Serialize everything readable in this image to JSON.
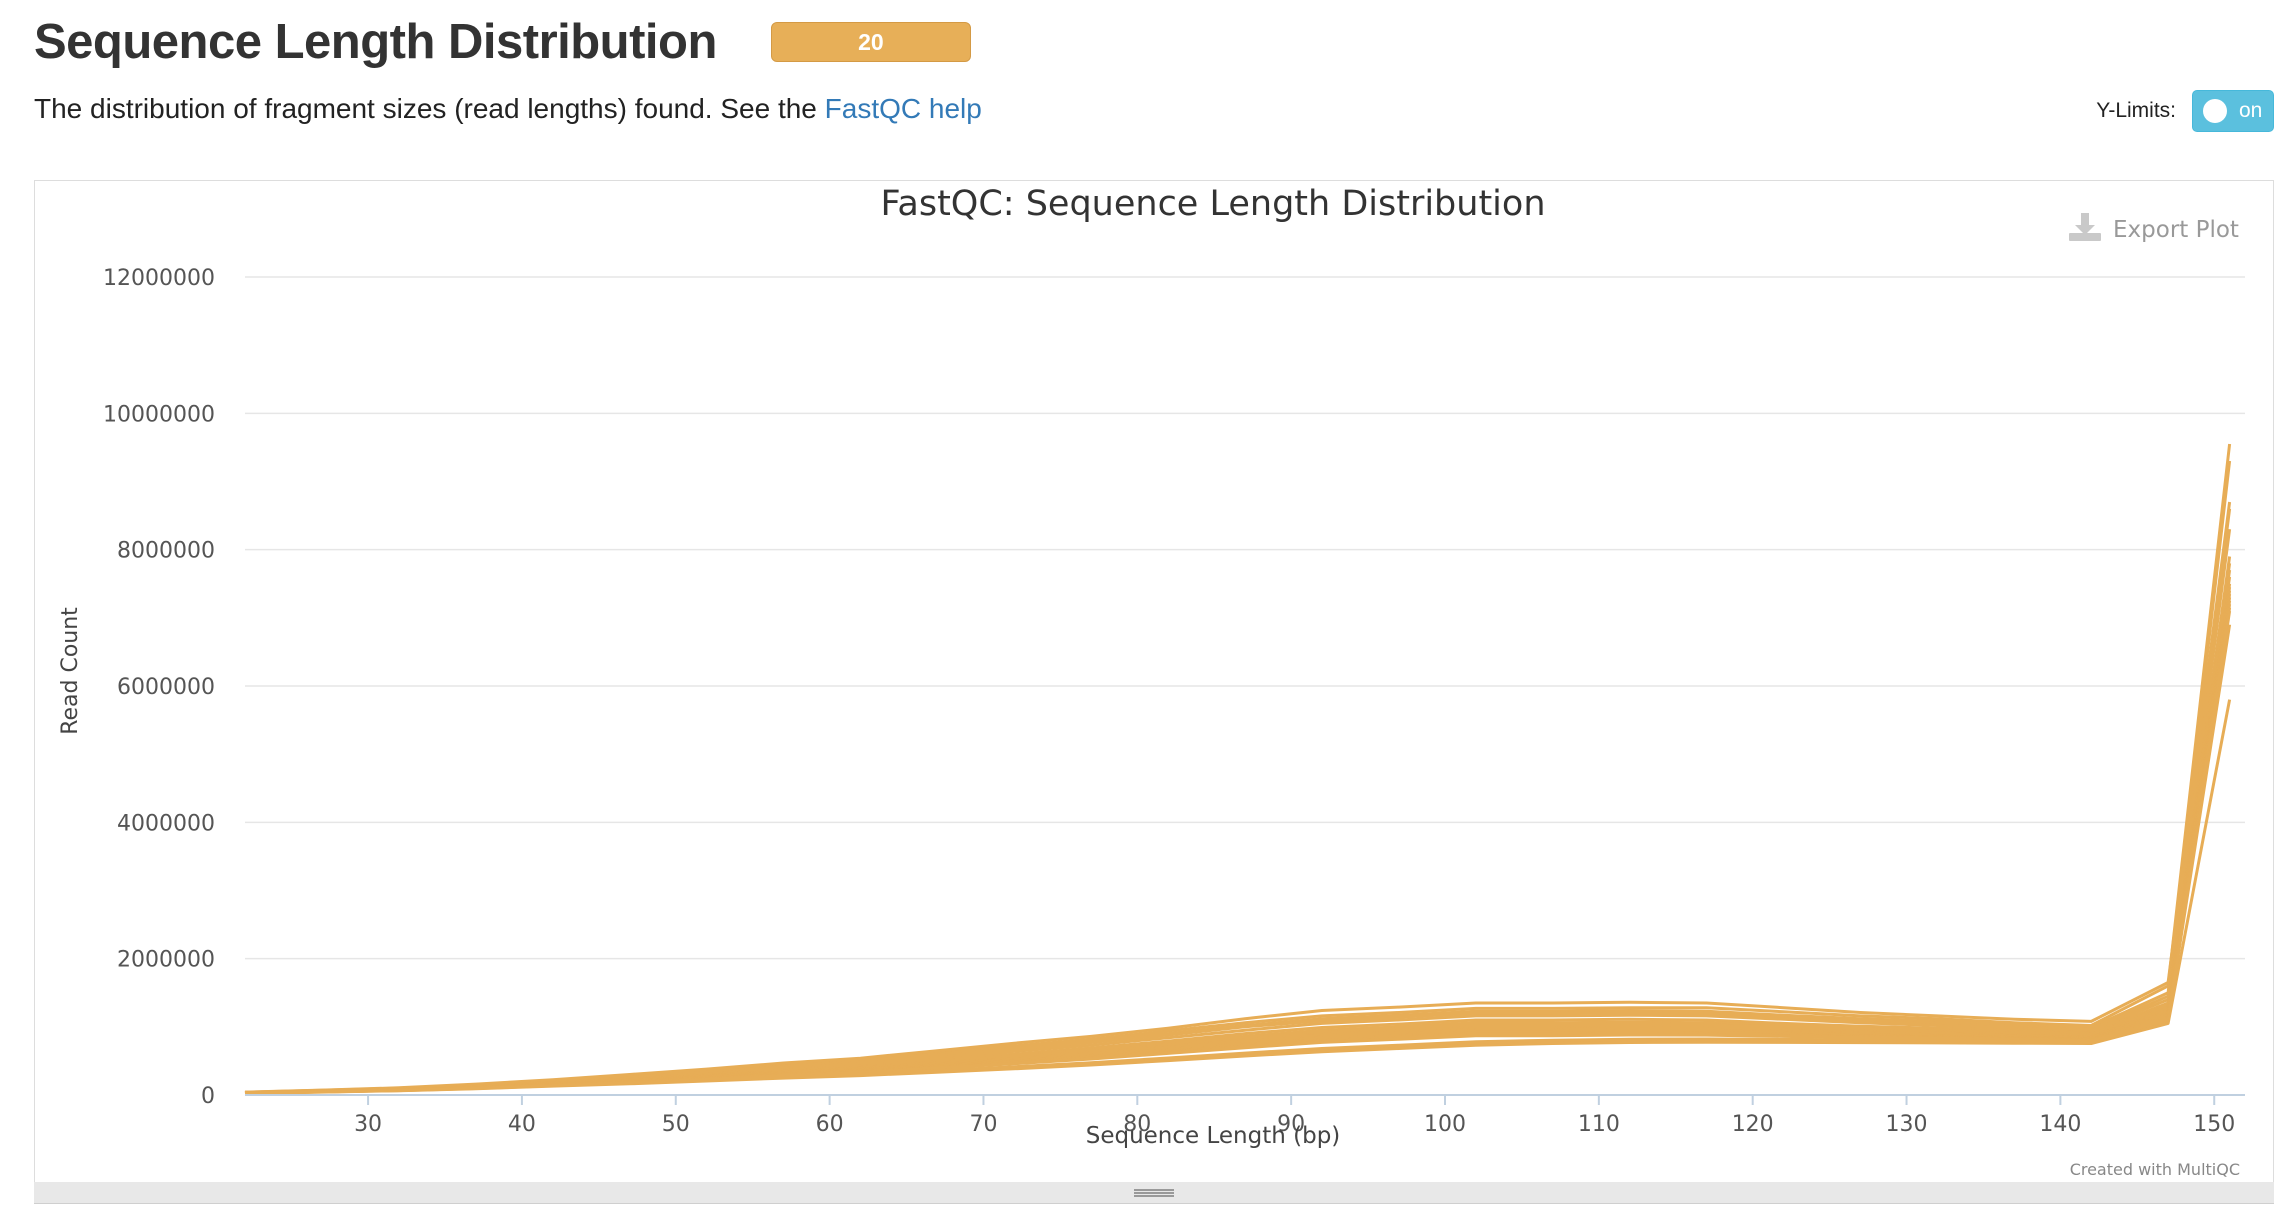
{
  "header": {
    "title": "Sequence Length Distribution",
    "badge_count": "20",
    "description_prefix": "The distribution of fragment sizes (read lengths) found. See the ",
    "help_link": "FastQC help"
  },
  "controls": {
    "ylimits_label": "Y-Limits:",
    "ylimits_toggle": "on",
    "export_label": "Export Plot"
  },
  "credit": "Created with MultiQC",
  "colors": {
    "series": "#e7ad56",
    "badge": "#e7af58",
    "toggle": "#5bc0de",
    "link": "#337ab7"
  },
  "chart_data": {
    "type": "line",
    "title": "FastQC: Sequence Length Distribution",
    "xlabel": "Sequence Length (bp)",
    "ylabel": "Read Count",
    "xlim": [
      22,
      152
    ],
    "ylim": [
      0,
      12000000
    ],
    "x_ticks": [
      30,
      40,
      50,
      60,
      70,
      80,
      90,
      100,
      110,
      120,
      130,
      140,
      150
    ],
    "y_ticks": [
      0,
      2000000,
      4000000,
      6000000,
      8000000,
      10000000,
      12000000
    ],
    "grid": true,
    "x": [
      22,
      27,
      32,
      37,
      42,
      47,
      52,
      57,
      62,
      67,
      72,
      77,
      82,
      87,
      92,
      97,
      102,
      107,
      112,
      117,
      122,
      127,
      132,
      137,
      142,
      147,
      151
    ],
    "series": [
      {
        "values": [
          40000,
          70000,
          100000,
          150000,
          210000,
          280000,
          360000,
          450000,
          520000,
          620000,
          720000,
          820000,
          940000,
          1060000,
          1160000,
          1210000,
          1270000,
          1270000,
          1280000,
          1280000,
          1220000,
          1160000,
          1120000,
          1060000,
          1020000,
          1600000,
          9550000
        ]
      },
      {
        "values": [
          38000,
          66000,
          95000,
          140000,
          200000,
          265000,
          340000,
          420000,
          500000,
          600000,
          690000,
          790000,
          900000,
          1020000,
          1120000,
          1170000,
          1230000,
          1230000,
          1240000,
          1230000,
          1170000,
          1120000,
          1080000,
          1030000,
          990000,
          1500000,
          9300000
        ]
      },
      {
        "values": [
          42000,
          72000,
          105000,
          160000,
          225000,
          300000,
          380000,
          470000,
          540000,
          650000,
          760000,
          860000,
          980000,
          1120000,
          1240000,
          1290000,
          1350000,
          1350000,
          1360000,
          1350000,
          1280000,
          1210000,
          1160000,
          1110000,
          1080000,
          1650000,
          8700000
        ]
      },
      {
        "values": [
          36000,
          63000,
          92000,
          135000,
          195000,
          255000,
          330000,
          410000,
          480000,
          580000,
          670000,
          770000,
          880000,
          1000000,
          1090000,
          1140000,
          1200000,
          1200000,
          1210000,
          1200000,
          1140000,
          1090000,
          1050000,
          1000000,
          960000,
          1450000,
          8600000
        ]
      },
      {
        "values": [
          35000,
          60000,
          88000,
          130000,
          185000,
          245000,
          310000,
          390000,
          460000,
          550000,
          640000,
          730000,
          840000,
          950000,
          1050000,
          1100000,
          1160000,
          1160000,
          1170000,
          1160000,
          1110000,
          1060000,
          1020000,
          980000,
          940000,
          1400000,
          8300000
        ]
      },
      {
        "values": [
          34000,
          58000,
          85000,
          125000,
          180000,
          235000,
          300000,
          370000,
          430000,
          520000,
          600000,
          690000,
          790000,
          900000,
          990000,
          1040000,
          1100000,
          1100000,
          1110000,
          1100000,
          1050000,
          1010000,
          980000,
          950000,
          910000,
          1350000,
          7900000
        ]
      },
      {
        "values": [
          33000,
          56000,
          82000,
          120000,
          175000,
          228000,
          290000,
          355000,
          415000,
          495000,
          575000,
          660000,
          760000,
          860000,
          950000,
          1000000,
          1060000,
          1060000,
          1070000,
          1060000,
          1020000,
          980000,
          950000,
          920000,
          890000,
          1320000,
          7800000
        ]
      },
      {
        "values": [
          32000,
          54000,
          80000,
          118000,
          170000,
          222000,
          282000,
          345000,
          400000,
          478000,
          555000,
          638000,
          735000,
          835000,
          920000,
          970000,
          1030000,
          1030000,
          1040000,
          1030000,
          990000,
          955000,
          930000,
          900000,
          870000,
          1300000,
          7700000
        ]
      },
      {
        "values": [
          31000,
          53000,
          78000,
          115000,
          165000,
          216000,
          275000,
          335000,
          390000,
          465000,
          540000,
          620000,
          715000,
          810000,
          895000,
          945000,
          1000000,
          1000000,
          1010000,
          1000000,
          965000,
          935000,
          910000,
          880000,
          850000,
          1280000,
          7600000
        ]
      },
      {
        "values": [
          30000,
          52000,
          77000,
          112000,
          162000,
          210000,
          268000,
          328000,
          380000,
          455000,
          528000,
          605000,
          698000,
          792000,
          875000,
          925000,
          980000,
          980000,
          990000,
          980000,
          948000,
          920000,
          897000,
          870000,
          842000,
          1260000,
          7500000
        ]
      },
      {
        "values": [
          30000,
          51000,
          75000,
          110000,
          158000,
          205000,
          262000,
          320000,
          372000,
          445000,
          516000,
          592000,
          683000,
          775000,
          857000,
          906000,
          960000,
          960000,
          970000,
          962000,
          932000,
          905000,
          884000,
          860000,
          834000,
          1240000,
          7450000
        ]
      },
      {
        "values": [
          29000,
          50000,
          74000,
          108000,
          155000,
          201000,
          256000,
          313000,
          364000,
          435000,
          505000,
          580000,
          668000,
          758000,
          840000,
          888000,
          942000,
          942000,
          952000,
          945000,
          917000,
          892000,
          872000,
          850000,
          826000,
          1220000,
          7400000
        ]
      },
      {
        "values": [
          29000,
          49000,
          72000,
          106000,
          152000,
          197000,
          251000,
          307000,
          357000,
          426000,
          495000,
          568000,
          655000,
          743000,
          824000,
          872000,
          925000,
          925000,
          935000,
          929000,
          903000,
          880000,
          862000,
          842000,
          819000,
          1200000,
          7350000
        ]
      },
      {
        "values": [
          28000,
          48000,
          71000,
          104000,
          149000,
          193000,
          246000,
          301000,
          350000,
          418000,
          486000,
          558000,
          643000,
          730000,
          810000,
          858000,
          910000,
          910000,
          920000,
          915000,
          891000,
          870000,
          853000,
          835000,
          813000,
          1180000,
          7300000
        ]
      },
      {
        "values": [
          28000,
          47000,
          70000,
          102000,
          146000,
          189000,
          241000,
          295000,
          343000,
          410000,
          477000,
          548000,
          632000,
          718000,
          797000,
          845000,
          896000,
          896000,
          906000,
          902000,
          880000,
          861000,
          846000,
          829000,
          808000,
          1160000,
          7250000
        ]
      },
      {
        "values": [
          27000,
          46000,
          68000,
          100000,
          143000,
          185000,
          236000,
          289000,
          336000,
          402000,
          468000,
          538000,
          621000,
          706000,
          784000,
          832000,
          883000,
          883000,
          893000,
          890000,
          870000,
          852000,
          839000,
          823000,
          803000,
          1140000,
          7200000
        ]
      },
      {
        "values": [
          27000,
          45000,
          67000,
          98000,
          140000,
          181000,
          231000,
          283000,
          329000,
          394000,
          459000,
          528000,
          610000,
          694000,
          771000,
          819000,
          870000,
          870000,
          880000,
          878000,
          860000,
          844000,
          832000,
          817000,
          798000,
          1120000,
          7150000
        ]
      },
      {
        "values": [
          26000,
          44000,
          65000,
          95000,
          135000,
          172000,
          215000,
          260000,
          300000,
          352000,
          405000,
          463000,
          530000,
          600000,
          665000,
          712000,
          760000,
          785000,
          800000,
          805000,
          800000,
          795000,
          790000,
          785000,
          780000,
          1080000,
          7100000
        ]
      },
      {
        "values": [
          25000,
          43000,
          63000,
          92000,
          130000,
          165000,
          205000,
          248000,
          285000,
          335000,
          385000,
          440000,
          505000,
          572000,
          635000,
          682000,
          730000,
          755000,
          770000,
          775000,
          772000,
          768000,
          764000,
          760000,
          756000,
          1050000,
          5800000
        ]
      },
      {
        "values": [
          26000,
          45000,
          66000,
          97000,
          138000,
          176000,
          220000,
          266000,
          307000,
          360000,
          415000,
          474000,
          543000,
          615000,
          682000,
          730000,
          780000,
          804000,
          818000,
          822000,
          816000,
          810000,
          804000,
          798000,
          792000,
          1100000,
          6900000
        ]
      }
    ]
  }
}
